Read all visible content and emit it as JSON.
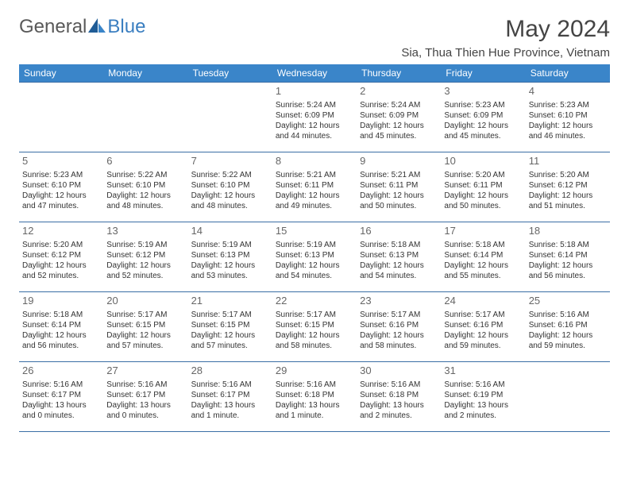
{
  "logo": {
    "text1": "General",
    "text2": "Blue"
  },
  "title": "May 2024",
  "location": "Sia, Thua Thien Hue Province, Vietnam",
  "colors": {
    "header_bg": "#3a85c9",
    "header_text": "#ffffff",
    "cell_border": "#3a6ea5",
    "daynum": "#666666",
    "body_text": "#333333",
    "logo_gray": "#595959",
    "logo_blue": "#3a7ec0"
  },
  "daysOfWeek": [
    "Sunday",
    "Monday",
    "Tuesday",
    "Wednesday",
    "Thursday",
    "Friday",
    "Saturday"
  ],
  "weeks": [
    [
      null,
      null,
      null,
      {
        "n": "1",
        "sr": "5:24 AM",
        "ss": "6:09 PM",
        "dl": "12 hours and 44 minutes."
      },
      {
        "n": "2",
        "sr": "5:24 AM",
        "ss": "6:09 PM",
        "dl": "12 hours and 45 minutes."
      },
      {
        "n": "3",
        "sr": "5:23 AM",
        "ss": "6:09 PM",
        "dl": "12 hours and 45 minutes."
      },
      {
        "n": "4",
        "sr": "5:23 AM",
        "ss": "6:10 PM",
        "dl": "12 hours and 46 minutes."
      }
    ],
    [
      {
        "n": "5",
        "sr": "5:23 AM",
        "ss": "6:10 PM",
        "dl": "12 hours and 47 minutes."
      },
      {
        "n": "6",
        "sr": "5:22 AM",
        "ss": "6:10 PM",
        "dl": "12 hours and 48 minutes."
      },
      {
        "n": "7",
        "sr": "5:22 AM",
        "ss": "6:10 PM",
        "dl": "12 hours and 48 minutes."
      },
      {
        "n": "8",
        "sr": "5:21 AM",
        "ss": "6:11 PM",
        "dl": "12 hours and 49 minutes."
      },
      {
        "n": "9",
        "sr": "5:21 AM",
        "ss": "6:11 PM",
        "dl": "12 hours and 50 minutes."
      },
      {
        "n": "10",
        "sr": "5:20 AM",
        "ss": "6:11 PM",
        "dl": "12 hours and 50 minutes."
      },
      {
        "n": "11",
        "sr": "5:20 AM",
        "ss": "6:12 PM",
        "dl": "12 hours and 51 minutes."
      }
    ],
    [
      {
        "n": "12",
        "sr": "5:20 AM",
        "ss": "6:12 PM",
        "dl": "12 hours and 52 minutes."
      },
      {
        "n": "13",
        "sr": "5:19 AM",
        "ss": "6:12 PM",
        "dl": "12 hours and 52 minutes."
      },
      {
        "n": "14",
        "sr": "5:19 AM",
        "ss": "6:13 PM",
        "dl": "12 hours and 53 minutes."
      },
      {
        "n": "15",
        "sr": "5:19 AM",
        "ss": "6:13 PM",
        "dl": "12 hours and 54 minutes."
      },
      {
        "n": "16",
        "sr": "5:18 AM",
        "ss": "6:13 PM",
        "dl": "12 hours and 54 minutes."
      },
      {
        "n": "17",
        "sr": "5:18 AM",
        "ss": "6:14 PM",
        "dl": "12 hours and 55 minutes."
      },
      {
        "n": "18",
        "sr": "5:18 AM",
        "ss": "6:14 PM",
        "dl": "12 hours and 56 minutes."
      }
    ],
    [
      {
        "n": "19",
        "sr": "5:18 AM",
        "ss": "6:14 PM",
        "dl": "12 hours and 56 minutes."
      },
      {
        "n": "20",
        "sr": "5:17 AM",
        "ss": "6:15 PM",
        "dl": "12 hours and 57 minutes."
      },
      {
        "n": "21",
        "sr": "5:17 AM",
        "ss": "6:15 PM",
        "dl": "12 hours and 57 minutes."
      },
      {
        "n": "22",
        "sr": "5:17 AM",
        "ss": "6:15 PM",
        "dl": "12 hours and 58 minutes."
      },
      {
        "n": "23",
        "sr": "5:17 AM",
        "ss": "6:16 PM",
        "dl": "12 hours and 58 minutes."
      },
      {
        "n": "24",
        "sr": "5:17 AM",
        "ss": "6:16 PM",
        "dl": "12 hours and 59 minutes."
      },
      {
        "n": "25",
        "sr": "5:16 AM",
        "ss": "6:16 PM",
        "dl": "12 hours and 59 minutes."
      }
    ],
    [
      {
        "n": "26",
        "sr": "5:16 AM",
        "ss": "6:17 PM",
        "dl": "13 hours and 0 minutes."
      },
      {
        "n": "27",
        "sr": "5:16 AM",
        "ss": "6:17 PM",
        "dl": "13 hours and 0 minutes."
      },
      {
        "n": "28",
        "sr": "5:16 AM",
        "ss": "6:17 PM",
        "dl": "13 hours and 1 minute."
      },
      {
        "n": "29",
        "sr": "5:16 AM",
        "ss": "6:18 PM",
        "dl": "13 hours and 1 minute."
      },
      {
        "n": "30",
        "sr": "5:16 AM",
        "ss": "6:18 PM",
        "dl": "13 hours and 2 minutes."
      },
      {
        "n": "31",
        "sr": "5:16 AM",
        "ss": "6:19 PM",
        "dl": "13 hours and 2 minutes."
      },
      null
    ]
  ],
  "labels": {
    "sunrise": "Sunrise: ",
    "sunset": "Sunset: ",
    "daylight": "Daylight: "
  }
}
